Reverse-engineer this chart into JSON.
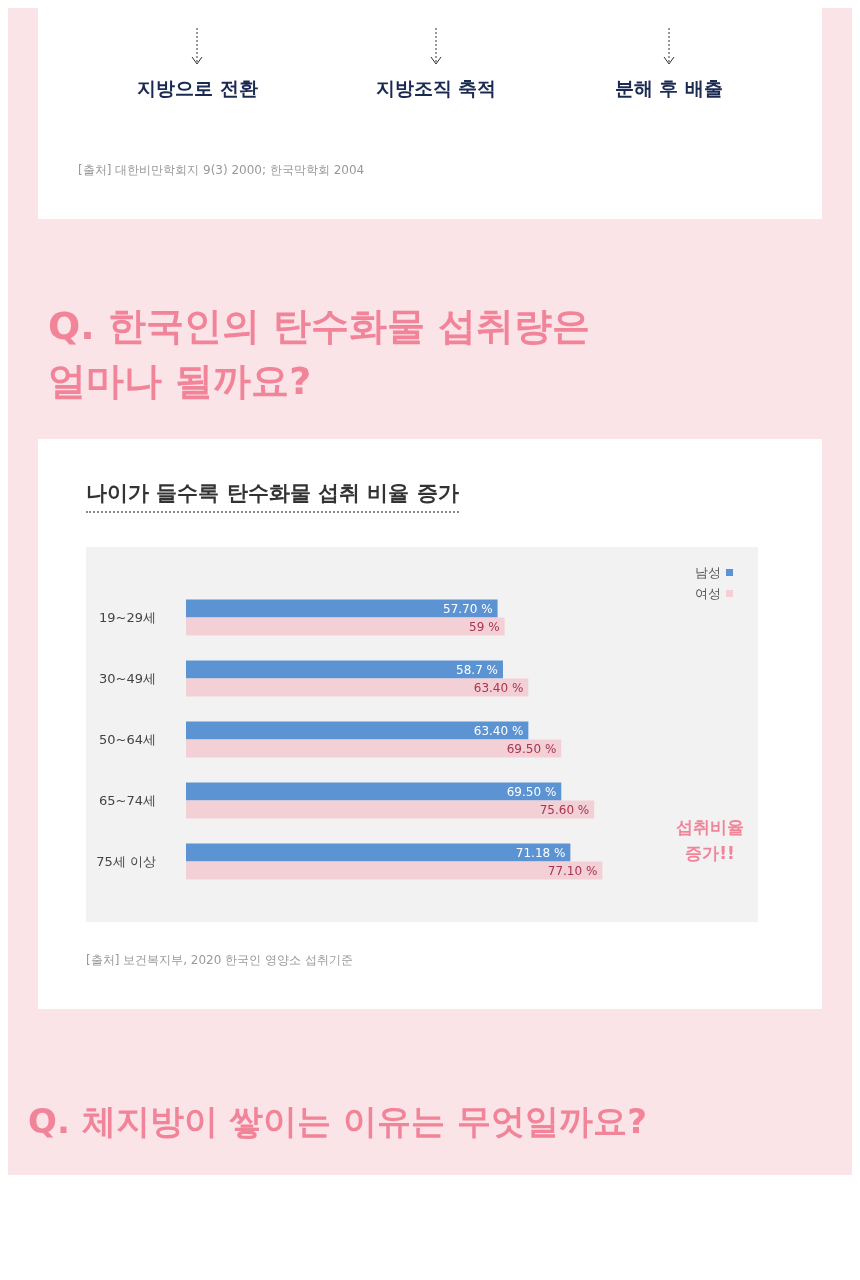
{
  "chart_data": {
    "type": "bar",
    "orientation": "horizontal",
    "title": "나이가 들수록 탄수화물 섭취 비율 증가",
    "categories": [
      "19~29세",
      "30~49세",
      "50~64세",
      "65~74세",
      "75세 이상"
    ],
    "series": [
      {
        "name": "남성",
        "color": "#5b93d3",
        "values": [
          57.7,
          58.7,
          63.4,
          69.5,
          71.18
        ],
        "value_labels": [
          "57.70 %",
          "58.7 %",
          "63.40 %",
          "69.50 %",
          "71.18 %"
        ]
      },
      {
        "name": "여성",
        "color": "#f3cfd6",
        "values": [
          59,
          63.4,
          69.5,
          75.6,
          77.1
        ],
        "value_labels": [
          "59 %",
          "63.40 %",
          "69.50 %",
          "75.60 %",
          "77.10 %"
        ]
      }
    ],
    "legend": "top right",
    "annotations": [
      "지방으로 전환",
      "지방조직 축적",
      "분해 후 배출",
      "[출처] 대한비만학회지 9(3) 2000; 한국막학회 2004",
      "Q. 한국인의 탄수화물 섭취량은\n얼마나 될까요?",
      "섭취비율\n증가!!",
      "[출처] 보건복지부, 2020 한국인 영양소 섭취기준",
      "Q. 체지방이 쌓이는 이유는 무엇일까요?"
    ]
  }
}
